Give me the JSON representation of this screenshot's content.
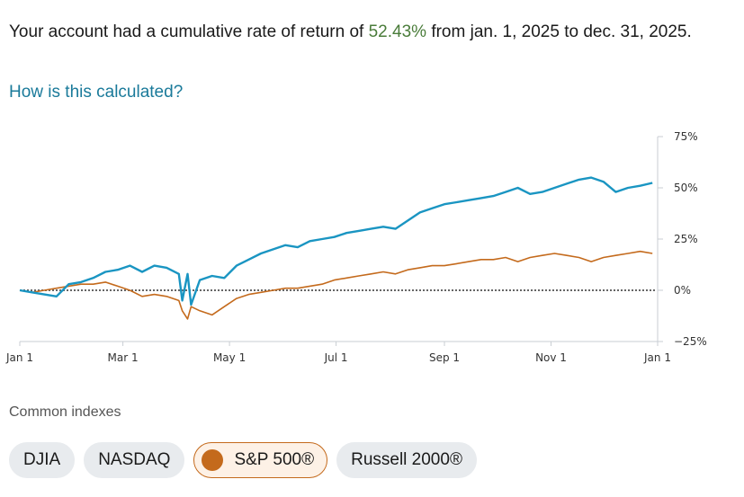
{
  "summary": {
    "prefix": "Your account had a cumulative rate of return of ",
    "rate": "52.43%",
    "suffix": " from jan. 1, 2025 to dec. 31, 2025."
  },
  "how_link": "How is this calculated?",
  "colors": {
    "account": "#1a95c2",
    "sp500": "#c46a1c",
    "positive_rate": "#4a7c3a"
  },
  "chart_data": {
    "type": "line",
    "x_ticks": [
      "Jan 1",
      "Mar 1",
      "May 1",
      "Jul 1",
      "Sep 1",
      "Nov 1",
      "Jan 1"
    ],
    "x_tick_dates": [
      "2025-01-01",
      "2025-03-01",
      "2025-05-01",
      "2025-07-01",
      "2025-09-01",
      "2025-11-01",
      "2026-01-01"
    ],
    "y_ticks": [
      "75%",
      "50%",
      "25%",
      "0%",
      "−25%"
    ],
    "y_tick_values": [
      75,
      50,
      25,
      0,
      -25
    ],
    "ylim": [
      -25,
      75
    ],
    "zero_line": "dotted",
    "series": [
      {
        "key": "account",
        "color": "#1a95c2",
        "points": [
          [
            "2025-01-01",
            0
          ],
          [
            "2025-01-08",
            -1
          ],
          [
            "2025-01-15",
            -2
          ],
          [
            "2025-01-22",
            -3
          ],
          [
            "2025-01-29",
            3
          ],
          [
            "2025-02-05",
            4
          ],
          [
            "2025-02-12",
            6
          ],
          [
            "2025-02-19",
            9
          ],
          [
            "2025-02-26",
            10
          ],
          [
            "2025-03-05",
            12
          ],
          [
            "2025-03-12",
            9
          ],
          [
            "2025-03-19",
            12
          ],
          [
            "2025-03-26",
            11
          ],
          [
            "2025-04-02",
            8
          ],
          [
            "2025-04-04",
            -5
          ],
          [
            "2025-04-07",
            8
          ],
          [
            "2025-04-09",
            -7
          ],
          [
            "2025-04-14",
            5
          ],
          [
            "2025-04-21",
            7
          ],
          [
            "2025-04-28",
            6
          ],
          [
            "2025-05-05",
            12
          ],
          [
            "2025-05-12",
            15
          ],
          [
            "2025-05-19",
            18
          ],
          [
            "2025-05-26",
            20
          ],
          [
            "2025-06-02",
            22
          ],
          [
            "2025-06-09",
            21
          ],
          [
            "2025-06-16",
            24
          ],
          [
            "2025-06-23",
            25
          ],
          [
            "2025-06-30",
            26
          ],
          [
            "2025-07-07",
            28
          ],
          [
            "2025-07-14",
            29
          ],
          [
            "2025-07-21",
            30
          ],
          [
            "2025-07-28",
            31
          ],
          [
            "2025-08-04",
            30
          ],
          [
            "2025-08-11",
            34
          ],
          [
            "2025-08-18",
            38
          ],
          [
            "2025-08-25",
            40
          ],
          [
            "2025-09-01",
            42
          ],
          [
            "2025-09-08",
            43
          ],
          [
            "2025-09-15",
            44
          ],
          [
            "2025-09-22",
            45
          ],
          [
            "2025-09-29",
            46
          ],
          [
            "2025-10-06",
            48
          ],
          [
            "2025-10-13",
            50
          ],
          [
            "2025-10-20",
            47
          ],
          [
            "2025-10-27",
            48
          ],
          [
            "2025-11-03",
            50
          ],
          [
            "2025-11-10",
            52
          ],
          [
            "2025-11-17",
            54
          ],
          [
            "2025-11-24",
            55
          ],
          [
            "2025-12-01",
            53
          ],
          [
            "2025-12-08",
            48
          ],
          [
            "2025-12-15",
            50
          ],
          [
            "2025-12-22",
            51
          ],
          [
            "2025-12-29",
            52.43
          ]
        ]
      },
      {
        "key": "sp500",
        "color": "#c46a1c",
        "points": [
          [
            "2025-01-01",
            0
          ],
          [
            "2025-01-08",
            -1
          ],
          [
            "2025-01-15",
            0
          ],
          [
            "2025-01-22",
            1
          ],
          [
            "2025-01-29",
            2
          ],
          [
            "2025-02-05",
            3
          ],
          [
            "2025-02-12",
            3
          ],
          [
            "2025-02-19",
            4
          ],
          [
            "2025-02-26",
            2
          ],
          [
            "2025-03-05",
            0
          ],
          [
            "2025-03-12",
            -3
          ],
          [
            "2025-03-19",
            -2
          ],
          [
            "2025-03-26",
            -3
          ],
          [
            "2025-04-02",
            -5
          ],
          [
            "2025-04-04",
            -10
          ],
          [
            "2025-04-07",
            -14
          ],
          [
            "2025-04-09",
            -8
          ],
          [
            "2025-04-14",
            -10
          ],
          [
            "2025-04-21",
            -12
          ],
          [
            "2025-04-28",
            -8
          ],
          [
            "2025-05-05",
            -4
          ],
          [
            "2025-05-12",
            -2
          ],
          [
            "2025-05-19",
            -1
          ],
          [
            "2025-05-26",
            0
          ],
          [
            "2025-06-02",
            1
          ],
          [
            "2025-06-09",
            1
          ],
          [
            "2025-06-16",
            2
          ],
          [
            "2025-06-23",
            3
          ],
          [
            "2025-06-30",
            5
          ],
          [
            "2025-07-07",
            6
          ],
          [
            "2025-07-14",
            7
          ],
          [
            "2025-07-21",
            8
          ],
          [
            "2025-07-28",
            9
          ],
          [
            "2025-08-04",
            8
          ],
          [
            "2025-08-11",
            10
          ],
          [
            "2025-08-18",
            11
          ],
          [
            "2025-08-25",
            12
          ],
          [
            "2025-09-01",
            12
          ],
          [
            "2025-09-08",
            13
          ],
          [
            "2025-09-15",
            14
          ],
          [
            "2025-09-22",
            15
          ],
          [
            "2025-09-29",
            15
          ],
          [
            "2025-10-06",
            16
          ],
          [
            "2025-10-13",
            14
          ],
          [
            "2025-10-20",
            16
          ],
          [
            "2025-10-27",
            17
          ],
          [
            "2025-11-03",
            18
          ],
          [
            "2025-11-10",
            17
          ],
          [
            "2025-11-17",
            16
          ],
          [
            "2025-11-24",
            14
          ],
          [
            "2025-12-01",
            16
          ],
          [
            "2025-12-08",
            17
          ],
          [
            "2025-12-15",
            18
          ],
          [
            "2025-12-22",
            19
          ],
          [
            "2025-12-29",
            18
          ]
        ]
      }
    ]
  },
  "indexes": {
    "label": "Common indexes",
    "chips": [
      {
        "label": "DJIA",
        "selected": false
      },
      {
        "label": "NASDAQ",
        "selected": false
      },
      {
        "label": "S&P 500®",
        "selected": true
      },
      {
        "label": "Russell 2000®",
        "selected": false
      }
    ]
  }
}
